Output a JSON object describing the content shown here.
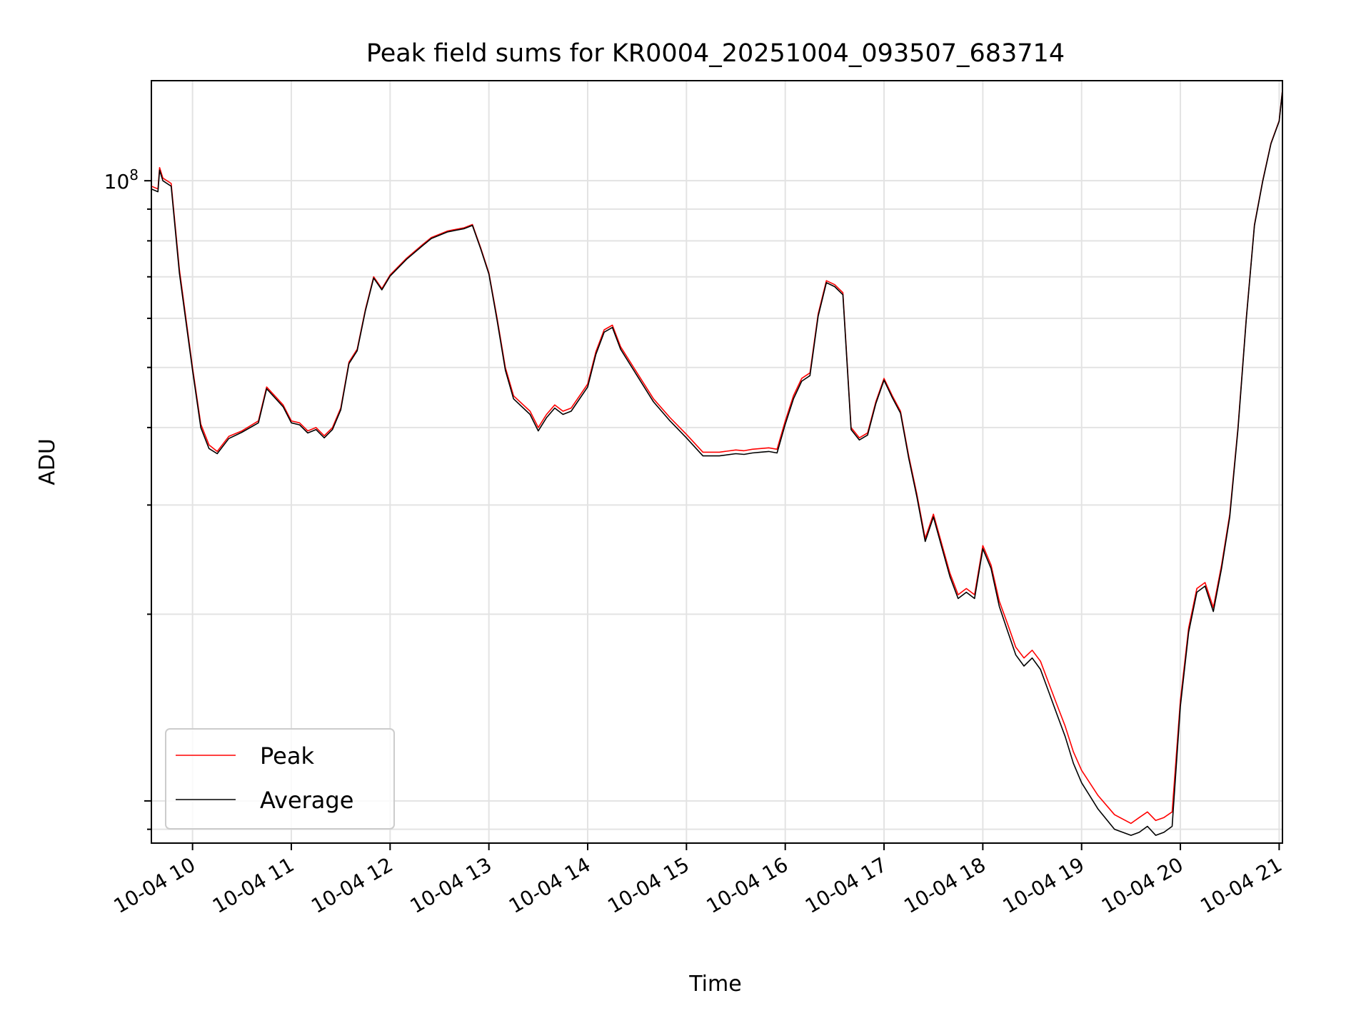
{
  "chart_data": {
    "type": "line",
    "title": "Peak field sums for KR0004_20251004_093507_683714",
    "xlabel": "Time",
    "ylabel": "ADU",
    "yscale": "log",
    "grid": true,
    "legend_position": "lower-left",
    "ylim": [
      8550000.0,
      145000000.0
    ],
    "xlim": [
      "2025-10-04T09:35:00",
      "2025-10-04T21:02:00"
    ],
    "y_tick_labels": [
      {
        "value": 100000000.0,
        "base": "10",
        "exponent": "8"
      }
    ],
    "x_tick_labels": [
      "10-04 10",
      "10-04 11",
      "10-04 12",
      "10-04 13",
      "10-04 14",
      "10-04 15",
      "10-04 16",
      "10-04 17",
      "10-04 18",
      "10-04 19",
      "10-04 20",
      "10-04 21"
    ],
    "x_tick_times": [
      "2025-10-04T10:00",
      "2025-10-04T11:00",
      "2025-10-04T12:00",
      "2025-10-04T13:00",
      "2025-10-04T14:00",
      "2025-10-04T15:00",
      "2025-10-04T16:00",
      "2025-10-04T17:00",
      "2025-10-04T18:00",
      "2025-10-04T19:00",
      "2025-10-04T20:00",
      "2025-10-04T21:00"
    ],
    "series": [
      {
        "name": "Peak",
        "color": "#ff0000",
        "x": [
          "2025-10-04T09:35",
          "2025-10-04T09:39",
          "2025-10-04T09:40",
          "2025-10-04T09:42",
          "2025-10-04T09:47",
          "2025-10-04T09:52",
          "2025-10-04T10:00",
          "2025-10-04T10:05",
          "2025-10-04T10:10",
          "2025-10-04T10:15",
          "2025-10-04T10:22",
          "2025-10-04T10:30",
          "2025-10-04T10:40",
          "2025-10-04T10:45",
          "2025-10-04T10:55",
          "2025-10-04T11:00",
          "2025-10-04T11:05",
          "2025-10-04T11:10",
          "2025-10-04T11:15",
          "2025-10-04T11:20",
          "2025-10-04T11:25",
          "2025-10-04T11:30",
          "2025-10-04T11:35",
          "2025-10-04T11:40",
          "2025-10-04T11:45",
          "2025-10-04T11:50",
          "2025-10-04T11:55",
          "2025-10-04T12:00",
          "2025-10-04T12:10",
          "2025-10-04T12:20",
          "2025-10-04T12:25",
          "2025-10-04T12:35",
          "2025-10-04T12:45",
          "2025-10-04T12:50",
          "2025-10-04T12:55",
          "2025-10-04T13:00",
          "2025-10-04T13:05",
          "2025-10-04T13:10",
          "2025-10-04T13:15",
          "2025-10-04T13:25",
          "2025-10-04T13:30",
          "2025-10-04T13:35",
          "2025-10-04T13:40",
          "2025-10-04T13:45",
          "2025-10-04T13:50",
          "2025-10-04T14:00",
          "2025-10-04T14:05",
          "2025-10-04T14:10",
          "2025-10-04T14:15",
          "2025-10-04T14:20",
          "2025-10-04T14:30",
          "2025-10-04T14:40",
          "2025-10-04T14:50",
          "2025-10-04T15:00",
          "2025-10-04T15:10",
          "2025-10-04T15:20",
          "2025-10-04T15:30",
          "2025-10-04T15:35",
          "2025-10-04T15:40",
          "2025-10-04T15:45",
          "2025-10-04T15:50",
          "2025-10-04T15:55",
          "2025-10-04T16:00",
          "2025-10-04T16:05",
          "2025-10-04T16:10",
          "2025-10-04T16:15",
          "2025-10-04T16:20",
          "2025-10-04T16:25",
          "2025-10-04T16:30",
          "2025-10-04T16:35",
          "2025-10-04T16:40",
          "2025-10-04T16:45",
          "2025-10-04T16:50",
          "2025-10-04T16:55",
          "2025-10-04T17:00",
          "2025-10-04T17:05",
          "2025-10-04T17:10",
          "2025-10-04T17:15",
          "2025-10-04T17:20",
          "2025-10-04T17:25",
          "2025-10-04T17:30",
          "2025-10-04T17:35",
          "2025-10-04T17:40",
          "2025-10-04T17:45",
          "2025-10-04T17:50",
          "2025-10-04T17:55",
          "2025-10-04T18:00",
          "2025-10-04T18:05",
          "2025-10-04T18:10",
          "2025-10-04T18:15",
          "2025-10-04T18:20",
          "2025-10-04T18:25",
          "2025-10-04T18:30",
          "2025-10-04T18:35",
          "2025-10-04T18:40",
          "2025-10-04T18:45",
          "2025-10-04T18:50",
          "2025-10-04T18:55",
          "2025-10-04T19:00",
          "2025-10-04T19:10",
          "2025-10-04T19:20",
          "2025-10-04T19:30",
          "2025-10-04T19:35",
          "2025-10-04T19:40",
          "2025-10-04T19:45",
          "2025-10-04T19:50",
          "2025-10-04T19:55",
          "2025-10-04T20:00",
          "2025-10-04T20:05",
          "2025-10-04T20:10",
          "2025-10-04T20:15",
          "2025-10-04T20:20",
          "2025-10-04T20:25",
          "2025-10-04T20:30",
          "2025-10-04T20:35",
          "2025-10-04T20:40",
          "2025-10-04T20:45",
          "2025-10-04T20:50",
          "2025-10-04T20:55",
          "2025-10-04T21:00",
          "2025-10-04T21:02"
        ],
        "y": [
          98000000,
          97000000,
          105000000,
          101000000,
          99000000,
          72000000,
          50000000,
          40500000,
          37500000,
          36600000,
          38700000,
          39500000,
          41000000,
          46500000,
          43500000,
          41000000,
          40700000,
          39500000,
          40000000,
          38800000,
          40000000,
          43000000,
          51000000,
          53500000,
          62000000,
          70000000,
          67000000,
          70500000,
          75000000,
          79000000,
          81000000,
          83000000,
          84000000,
          85000000,
          78000000,
          71000000,
          60000000,
          50000000,
          45000000,
          42500000,
          40000000,
          42000000,
          43500000,
          42500000,
          43000000,
          47000000,
          53000000,
          57500000,
          58500000,
          54000000,
          49000000,
          44500000,
          41500000,
          39000000,
          36500000,
          36500000,
          36800000,
          36700000,
          36900000,
          37000000,
          37100000,
          36900000,
          41000000,
          45000000,
          48000000,
          49000000,
          61000000,
          69000000,
          68000000,
          66000000,
          40000000,
          38500000,
          39200000,
          44000000,
          48000000,
          45000000,
          42500000,
          36000000,
          31200000,
          26500000,
          29000000,
          26000000,
          23300000,
          21500000,
          22000000,
          21500000,
          25800000,
          24000000,
          21000000,
          19300000,
          17700000,
          17000000,
          17500000,
          16800000,
          15500000,
          14300000,
          13200000,
          12000000,
          11200000,
          10200000,
          9500000,
          9200000,
          9400000,
          9600000,
          9300000,
          9400000,
          9600000,
          14500000,
          19000000,
          22000000,
          22500000,
          20500000,
          24000000,
          29000000,
          40000000,
          60000000,
          85000000,
          100000000,
          115000000,
          125000000,
          140000000
        ]
      },
      {
        "name": "Average",
        "color": "#000000",
        "x": [
          "2025-10-04T09:35",
          "2025-10-04T09:39",
          "2025-10-04T09:40",
          "2025-10-04T09:42",
          "2025-10-04T09:47",
          "2025-10-04T09:52",
          "2025-10-04T10:00",
          "2025-10-04T10:05",
          "2025-10-04T10:10",
          "2025-10-04T10:15",
          "2025-10-04T10:22",
          "2025-10-04T10:30",
          "2025-10-04T10:40",
          "2025-10-04T10:45",
          "2025-10-04T10:55",
          "2025-10-04T11:00",
          "2025-10-04T11:05",
          "2025-10-04T11:10",
          "2025-10-04T11:15",
          "2025-10-04T11:20",
          "2025-10-04T11:25",
          "2025-10-04T11:30",
          "2025-10-04T11:35",
          "2025-10-04T11:40",
          "2025-10-04T11:45",
          "2025-10-04T11:50",
          "2025-10-04T11:55",
          "2025-10-04T12:00",
          "2025-10-04T12:10",
          "2025-10-04T12:20",
          "2025-10-04T12:25",
          "2025-10-04T12:35",
          "2025-10-04T12:45",
          "2025-10-04T12:50",
          "2025-10-04T12:55",
          "2025-10-04T13:00",
          "2025-10-04T13:05",
          "2025-10-04T13:10",
          "2025-10-04T13:15",
          "2025-10-04T13:25",
          "2025-10-04T13:30",
          "2025-10-04T13:35",
          "2025-10-04T13:40",
          "2025-10-04T13:45",
          "2025-10-04T13:50",
          "2025-10-04T14:00",
          "2025-10-04T14:05",
          "2025-10-04T14:10",
          "2025-10-04T14:15",
          "2025-10-04T14:20",
          "2025-10-04T14:30",
          "2025-10-04T14:40",
          "2025-10-04T14:50",
          "2025-10-04T15:00",
          "2025-10-04T15:10",
          "2025-10-04T15:20",
          "2025-10-04T15:30",
          "2025-10-04T15:35",
          "2025-10-04T15:40",
          "2025-10-04T15:45",
          "2025-10-04T15:50",
          "2025-10-04T15:55",
          "2025-10-04T16:00",
          "2025-10-04T16:05",
          "2025-10-04T16:10",
          "2025-10-04T16:15",
          "2025-10-04T16:20",
          "2025-10-04T16:25",
          "2025-10-04T16:30",
          "2025-10-04T16:35",
          "2025-10-04T16:40",
          "2025-10-04T16:45",
          "2025-10-04T16:50",
          "2025-10-04T16:55",
          "2025-10-04T17:00",
          "2025-10-04T17:05",
          "2025-10-04T17:10",
          "2025-10-04T17:15",
          "2025-10-04T17:20",
          "2025-10-04T17:25",
          "2025-10-04T17:30",
          "2025-10-04T17:35",
          "2025-10-04T17:40",
          "2025-10-04T17:45",
          "2025-10-04T17:50",
          "2025-10-04T17:55",
          "2025-10-04T18:00",
          "2025-10-04T18:05",
          "2025-10-04T18:10",
          "2025-10-04T18:15",
          "2025-10-04T18:20",
          "2025-10-04T18:25",
          "2025-10-04T18:30",
          "2025-10-04T18:35",
          "2025-10-04T18:40",
          "2025-10-04T18:45",
          "2025-10-04T18:50",
          "2025-10-04T18:55",
          "2025-10-04T19:00",
          "2025-10-04T19:10",
          "2025-10-04T19:20",
          "2025-10-04T19:30",
          "2025-10-04T19:35",
          "2025-10-04T19:40",
          "2025-10-04T19:45",
          "2025-10-04T19:50",
          "2025-10-04T19:55",
          "2025-10-04T20:00",
          "2025-10-04T20:05",
          "2025-10-04T20:10",
          "2025-10-04T20:15",
          "2025-10-04T20:20",
          "2025-10-04T20:25",
          "2025-10-04T20:30",
          "2025-10-04T20:35",
          "2025-10-04T20:40",
          "2025-10-04T20:45",
          "2025-10-04T20:50",
          "2025-10-04T20:55",
          "2025-10-04T21:00",
          "2025-10-04T21:02"
        ],
        "y": [
          97000000,
          96000000,
          104000000,
          100000000,
          98000000,
          71000000,
          49500000,
          40000000,
          37000000,
          36300000,
          38400000,
          39300000,
          40700000,
          46200000,
          43200000,
          40700000,
          40400000,
          39200000,
          39700000,
          38500000,
          39700000,
          42700000,
          50700000,
          53200000,
          61700000,
          69700000,
          66700000,
          70200000,
          74700000,
          78700000,
          80700000,
          82700000,
          83700000,
          84700000,
          77700000,
          70700000,
          59500000,
          49500000,
          44500000,
          42000000,
          39500000,
          41500000,
          43000000,
          42000000,
          42500000,
          46500000,
          52500000,
          57000000,
          58000000,
          53500000,
          48500000,
          44000000,
          41000000,
          38500000,
          36000000,
          36000000,
          36300000,
          36200000,
          36400000,
          36500000,
          36600000,
          36400000,
          40500000,
          44500000,
          47500000,
          48500000,
          60500000,
          68500000,
          67500000,
          65500000,
          39700000,
          38200000,
          38900000,
          43700000,
          47700000,
          44700000,
          42200000,
          35700000,
          30900000,
          26200000,
          28700000,
          25700000,
          23000000,
          21200000,
          21700000,
          21200000,
          25500000,
          23700000,
          20600000,
          18800000,
          17200000,
          16500000,
          17000000,
          16300000,
          15000000,
          13800000,
          12700000,
          11500000,
          10700000,
          9700000,
          9000000,
          8800000,
          8900000,
          9100000,
          8800000,
          8900000,
          9100000,
          14200000,
          18700000,
          21700000,
          22200000,
          20200000,
          23700000,
          28700000,
          39700000,
          59700000,
          84700000,
          99700000,
          114700000,
          124700000,
          139700000
        ]
      }
    ]
  }
}
